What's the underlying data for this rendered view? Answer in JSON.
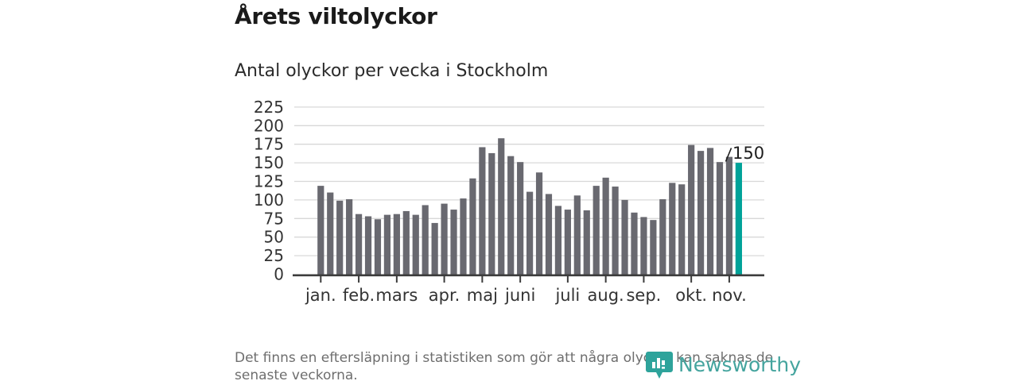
{
  "header": {
    "title": "Årets viltolyckor",
    "subtitle": "Antal olyckor per vecka i Stockholm"
  },
  "chart_data": {
    "type": "bar",
    "title": "Årets viltolyckor",
    "subtitle": "Antal olyckor per vecka i Stockholm",
    "x_unit": "vecka",
    "n_weeks": 45,
    "values": [
      119,
      110,
      99,
      101,
      81,
      78,
      74,
      80,
      81,
      85,
      80,
      93,
      69,
      95,
      87,
      102,
      129,
      171,
      163,
      183,
      159,
      151,
      111,
      137,
      108,
      92,
      87,
      106,
      86,
      119,
      130,
      118,
      100,
      83,
      77,
      73,
      101,
      123,
      121,
      174,
      166,
      170,
      151,
      158,
      150
    ],
    "highlight_index": 44,
    "highlight_label": "150",
    "y_ticks": [
      0,
      25,
      50,
      75,
      100,
      125,
      150,
      175,
      200,
      225
    ],
    "ylim": [
      0,
      225
    ],
    "grid": true,
    "legend": false,
    "x_tick_labels": [
      "jan.",
      "feb.",
      "mars",
      "apr.",
      "maj",
      "juni",
      "juli",
      "aug.",
      "sep.",
      "okt.",
      "nov."
    ],
    "x_tick_weeks": [
      1,
      5,
      9,
      14,
      18,
      22,
      27,
      31,
      35,
      40,
      44
    ]
  },
  "footer": {
    "note_line1": "Det finns en eftersläpning i statistiken som gör att några olyckor kan saknas de",
    "note_line2": "senaste veckorna."
  },
  "branding": {
    "name": "Newsworthy",
    "icon": "bar-chart-bubble-icon"
  },
  "colors": {
    "bar": "#696970",
    "highlight": "#00a299",
    "grid": "#d8d8d8",
    "axis": "#3c3c3c",
    "tick_text": "#333333",
    "annotation_text": "#1d1d1d",
    "title_text": "#1a1a1a",
    "muted_text": "#6e6e6e",
    "logo": "#44a49e",
    "logo_icon": "#2ea39b"
  }
}
